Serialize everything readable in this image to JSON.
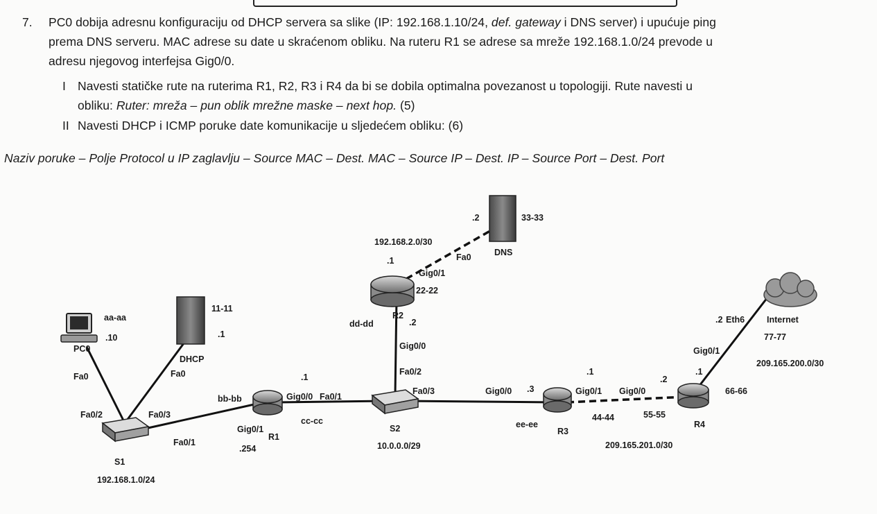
{
  "task": {
    "number": "7.",
    "line1_a": "PC0 dobija adresnu konfiguraciju od DHCP servera sa slike (IP: 192.168.1.10/24, ",
    "line1_em": "def. gateway",
    "line1_b": " i DNS server) i upućuje ping",
    "line2": "prema DNS serveru. MAC adrese su date u skraćenom obliku. Na ruteru R1 se adrese sa mreže 192.168.1.0/24 prevode u",
    "line3": "adresu njegovog interfejsa Gig0/0.",
    "sub1_marker": "I",
    "sub1_line1": "Navesti statičke rute na ruterima R1, R2, R3 i R4 da bi se dobila optimalna povezanost u topologiji. Rute navesti u",
    "sub1_line2_a": "obliku: ",
    "sub1_line2_em": "Ruter: mreža – pun oblik mrežne maske – next hop.",
    "sub1_line2_b": " (5)",
    "sub2_marker": "II",
    "sub2_text": "Navesti DHCP i ICMP poruke date komunikacije u sljedećem obliku: (6)",
    "format": "Naziv poruke – Polje Protocol u IP zaglavlju –  Source MAC – Dest. MAC – Source IP – Dest. IP – Source Port – Dest. Port"
  },
  "topology": {
    "pc0": {
      "name": "PC0",
      "mac": "aa-aa",
      "ip": ".10",
      "port": "Fa0"
    },
    "dhcp": {
      "name": "DHCP",
      "mac": "11-11",
      "ip": ".1",
      "port": "Fa0"
    },
    "s1": {
      "name": "S1",
      "network": "192.168.1.0/24",
      "p_pc": "Fa0/2",
      "p_dhcp": "Fa0/3",
      "p_r1": "Fa0/1"
    },
    "r1": {
      "name": "R1",
      "mac_g01": "bb-bb",
      "ip_g01": ".254",
      "p_g01": "Gig0/1",
      "p_g00": "Gig0/0",
      "ip_g00": ".1",
      "mac_g00": "cc-cc"
    },
    "s2": {
      "name": "S2",
      "network": "10.0.0.0/29",
      "p_r1": "Fa0/1",
      "p_r2": "Fa0/2",
      "p_r3": "Fa0/3"
    },
    "r2": {
      "name": "R2",
      "mac_g00": "dd-dd",
      "ip_g00": ".2",
      "p_g00": "Gig0/0",
      "p_g01": "Gig0/1",
      "mac_g01": "22-22",
      "ip_g01": ".1",
      "network_dns": "192.168.2.0/30"
    },
    "dns": {
      "name": "DNS",
      "mac": "33-33",
      "ip": ".2",
      "port": "Fa0"
    },
    "r3": {
      "name": "R3",
      "mac_g00": "ee-ee",
      "p_g00": "Gig0/0",
      "ip_g00": ".3",
      "p_g01": "Gig0/1",
      "ip_g01": ".1",
      "mac_g01": "44-44"
    },
    "r4": {
      "name": "R4",
      "p_g00": "Gig0/0",
      "ip_g00": ".2",
      "mac_g00": "55-55",
      "network_r3r4": "209.165.201.0/30",
      "p_g01": "Gig0/1",
      "ip_g01": ".1",
      "mac_g01": "66-66"
    },
    "internet": {
      "name": "Internet",
      "port": "Eth6",
      "ip": ".2",
      "mac": "77-77",
      "network": "209.165.200.0/30"
    }
  }
}
